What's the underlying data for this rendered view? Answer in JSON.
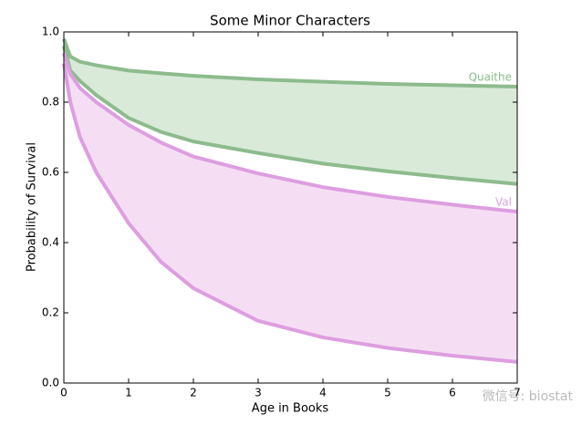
{
  "chart_data": {
    "type": "band-line",
    "title": "Some Minor Characters",
    "xlabel": "Age in Books",
    "ylabel": "Probability of Survival",
    "x": [
      0,
      0.1,
      0.25,
      0.5,
      1,
      1.5,
      2,
      3,
      4,
      5,
      6,
      7
    ],
    "series": [
      {
        "name": "Quaithe",
        "color": "#8dbb8d",
        "fill": "#d9ead9",
        "upper": [
          0.98,
          0.93,
          0.915,
          0.905,
          0.89,
          0.882,
          0.875,
          0.865,
          0.858,
          0.852,
          0.848,
          0.844
        ],
        "lower": [
          0.96,
          0.89,
          0.86,
          0.82,
          0.755,
          0.715,
          0.688,
          0.655,
          0.625,
          0.603,
          0.584,
          0.567
        ]
      },
      {
        "name": "Val",
        "color": "#dd9ee0",
        "fill": "#f5def4",
        "upper": [
          0.94,
          0.88,
          0.84,
          0.8,
          0.735,
          0.685,
          0.645,
          0.597,
          0.558,
          0.53,
          0.508,
          0.488
        ],
        "lower": [
          0.91,
          0.8,
          0.7,
          0.6,
          0.455,
          0.345,
          0.27,
          0.177,
          0.13,
          0.1,
          0.078,
          0.06
        ]
      }
    ],
    "xlim": [
      0,
      7
    ],
    "xticks": [
      0,
      1,
      2,
      3,
      4,
      5,
      6,
      7
    ],
    "ylim": [
      0,
      1
    ],
    "yticks": [
      {
        "value": 0,
        "label": "0.0"
      },
      0.2,
      0.4,
      0.6,
      0.8,
      {
        "value": 1,
        "label": "1.0"
      }
    ],
    "watermark": "微信号: biostat"
  }
}
